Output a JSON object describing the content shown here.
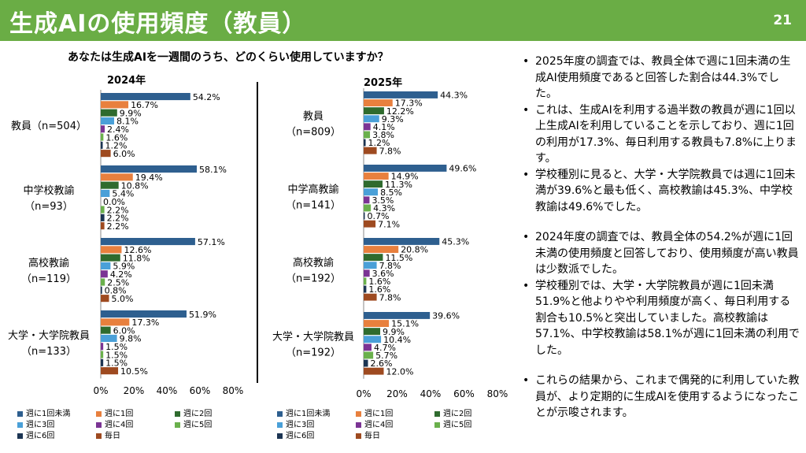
{
  "header": {
    "title": "生成AIの使用頻度（教員）",
    "page_number": "21",
    "color": "#6aad45"
  },
  "question": "あなたは生成AIを一週間のうち、どのくらい使用していますか？",
  "chart_data": [
    {
      "type": "bar",
      "orientation": "horizontal",
      "title": "2024年",
      "xlim": [
        0,
        80
      ],
      "xticks": [
        "0%",
        "20%",
        "40%",
        "60%",
        "80%"
      ],
      "series_names": [
        "週に1回未満",
        "週に1回",
        "週に2回",
        "週に3回",
        "週に4回",
        "週に5回",
        "週に6回",
        "毎日"
      ],
      "colors": [
        "#2e5f8f",
        "#e8803e",
        "#2f6b2e",
        "#4aa0d8",
        "#7b3494",
        "#6ab04c",
        "#1c3553",
        "#9e4a20"
      ],
      "groups": [
        {
          "label": "教員（n=504）",
          "label_lines": [
            "教員（n=504）"
          ],
          "values": [
            54.2,
            16.7,
            9.9,
            8.1,
            2.4,
            1.6,
            1.2,
            6.0
          ],
          "value_labels": [
            "54.2%",
            "16.7%",
            "9.9%",
            "8.1%",
            "2.4%",
            "1.6%",
            "1.2%",
            "6.0%"
          ]
        },
        {
          "label": "中学校教諭 （n=93）",
          "label_lines": [
            "中学校教諭",
            "（n=93）"
          ],
          "values": [
            58.1,
            19.4,
            10.8,
            5.4,
            0.0,
            2.2,
            2.2,
            2.2
          ],
          "value_labels": [
            "58.1%",
            "19.4%",
            "10.8%",
            "5.4%",
            "0.0%",
            "2.2%",
            "2.2%",
            "2.2%"
          ]
        },
        {
          "label": "高校教諭 （n=119）",
          "label_lines": [
            "高校教諭",
            "（n=119）"
          ],
          "values": [
            57.1,
            12.6,
            11.8,
            5.9,
            4.2,
            2.5,
            0.8,
            5.0
          ],
          "value_labels": [
            "57.1%",
            "12.6%",
            "11.8%",
            "5.9%",
            "4.2%",
            "2.5%",
            "0.8%",
            "5.0%"
          ]
        },
        {
          "label": "大学・大学院教員 （n=133）",
          "label_lines": [
            "大学・大学院教員",
            "（n=133）"
          ],
          "values": [
            51.9,
            17.3,
            6.0,
            9.8,
            1.5,
            1.5,
            1.5,
            10.5
          ],
          "value_labels": [
            "51.9%",
            "17.3%",
            "6.0%",
            "9.8%",
            "1.5%",
            "1.5%",
            "1.5%",
            "10.5%"
          ]
        }
      ]
    },
    {
      "type": "bar",
      "orientation": "horizontal",
      "title": "2025年",
      "xlim": [
        0,
        80
      ],
      "xticks": [
        "0%",
        "20%",
        "40%",
        "60%",
        "80%"
      ],
      "series_names": [
        "週に1回未満",
        "週に1回",
        "週に2回",
        "週に3回",
        "週に4回",
        "週に5回",
        "週に6回",
        "毎日"
      ],
      "colors": [
        "#2e5f8f",
        "#e8803e",
        "#2f6b2e",
        "#4aa0d8",
        "#7b3494",
        "#6ab04c",
        "#1c3553",
        "#9e4a20"
      ],
      "groups": [
        {
          "label": "教員 （n=809）",
          "label_lines": [
            "教員",
            "（n=809）"
          ],
          "values": [
            44.3,
            17.3,
            12.2,
            9.3,
            4.1,
            3.8,
            1.2,
            7.8
          ],
          "value_labels": [
            "44.3%",
            "17.3%",
            "12.2%",
            "9.3%",
            "4.1%",
            "3.8%",
            "1.2%",
            "7.8%"
          ]
        },
        {
          "label": "中学高教諭 （n=141）",
          "label_lines": [
            "中学高教諭",
            "（n=141）"
          ],
          "values": [
            49.6,
            14.9,
            11.3,
            8.5,
            3.5,
            4.3,
            0.7,
            7.1
          ],
          "value_labels": [
            "49.6%",
            "14.9%",
            "11.3%",
            "8.5%",
            "3.5%",
            "4.3%",
            "0.7%",
            "7.1%"
          ]
        },
        {
          "label": "高校教諭 （n=192）",
          "label_lines": [
            "高校教諭",
            "（n=192）"
          ],
          "values": [
            45.3,
            20.8,
            11.5,
            7.8,
            3.6,
            1.6,
            1.6,
            7.8
          ],
          "value_labels": [
            "45.3%",
            "20.8%",
            "11.5%",
            "7.8%",
            "3.6%",
            "1.6%",
            "1.6%",
            "7.8%"
          ]
        },
        {
          "label": "大学・大学院教員 （n=192）",
          "label_lines": [
            "大学・大学院教員",
            "（n=192）"
          ],
          "values": [
            39.6,
            15.1,
            9.9,
            10.4,
            4.7,
            5.7,
            2.6,
            12.0
          ],
          "value_labels": [
            "39.6%",
            "15.1%",
            "9.9%",
            "10.4%",
            "4.7%",
            "5.7%",
            "2.6%",
            "12.0%"
          ]
        }
      ]
    }
  ],
  "legend": {
    "items": [
      {
        "label": "週に1回未満",
        "color": "#2e5f8f"
      },
      {
        "label": "週に1回",
        "color": "#e8803e"
      },
      {
        "label": "週に2回",
        "color": "#2f6b2e"
      },
      {
        "label": "週に3回",
        "color": "#4aa0d8"
      },
      {
        "label": "週に4回",
        "color": "#7b3494"
      },
      {
        "label": "週に5回",
        "color": "#6ab04c"
      },
      {
        "label": "週に6回",
        "color": "#1c3553"
      },
      {
        "label": "毎日",
        "color": "#9e4a20"
      }
    ]
  },
  "bullets": {
    "group1": [
      "2025年度の調査では、教員全体で週に1回未満の生成AI使用頻度であると回答した割合は44.3%でした。",
      "これは、生成AIを利用する過半数の教員が週に1回以上生成AIを利用していることを示しており、週に1回の利用が17.3%、毎日利用する教員も7.8%に上ります。",
      "学校種別に見ると、大学・大学院教員では週に1回未満が39.6%と最も低く、高校教諭は45.3%、中学校教諭は49.6%でした。"
    ],
    "group2": [
      "2024年度の調査では、教員全体の54.2%が週に1回未満の使用頻度と回答しており、使用頻度が高い教員は少数派でした。",
      "学校種別では、大学・大学院教員が週に1回未満51.9%と他よりやや利用頻度が高く、毎日利用する割合も10.5%と突出していました。高校教諭は57.1%、中学校教諭は58.1%が週に1回未満の利用でした。"
    ],
    "group3": [
      "これらの結果から、これまで偶発的に利用していた教員が、より定期的に生成AIを使用するようになったことが示唆されます。"
    ]
  }
}
